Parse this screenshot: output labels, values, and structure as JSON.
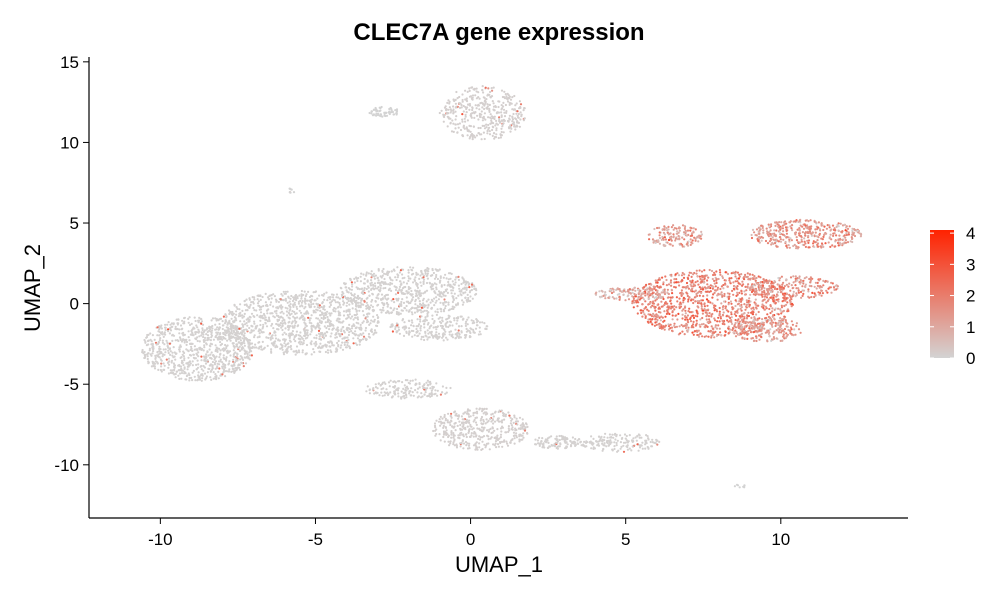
{
  "chart_data": {
    "type": "scatter",
    "title": "CLEC7A gene expression",
    "xlabel": "UMAP_1",
    "ylabel": "UMAP_2",
    "xlim": [
      -12.3,
      14.1
    ],
    "ylim": [
      -13.3,
      15.3
    ],
    "xticks": [
      -10,
      -5,
      0,
      5,
      10
    ],
    "yticks": [
      -10,
      -5,
      0,
      5,
      10,
      15
    ],
    "grid": false,
    "legend": {
      "placement": "right",
      "ticks": [
        0,
        1,
        2,
        3,
        4
      ],
      "low_color": "#d3d3d3",
      "high_color": "#ff2200"
    },
    "clusters": [
      {
        "name": "top-island",
        "cx": 0.4,
        "cy": 11.8,
        "rx": 1.4,
        "ry": 1.7,
        "expression": 0.1,
        "density": 1.0
      },
      {
        "name": "top-left-islet",
        "cx": -2.8,
        "cy": 11.9,
        "rx": 0.5,
        "ry": 0.3,
        "expression": 0.0,
        "density": 0.15
      },
      {
        "name": "tiny-islet",
        "cx": -5.8,
        "cy": 7.0,
        "rx": 0.15,
        "ry": 0.15,
        "expression": 0.0,
        "density": 0.02
      },
      {
        "name": "left-big-core",
        "cx": -8.8,
        "cy": -2.8,
        "rx": 1.8,
        "ry": 2.0,
        "expression": 0.05,
        "density": 2.0
      },
      {
        "name": "left-big-mid",
        "cx": -5.5,
        "cy": -1.2,
        "rx": 2.6,
        "ry": 2.0,
        "expression": 0.05,
        "density": 2.5
      },
      {
        "name": "left-big-upper",
        "cx": -2.0,
        "cy": 0.8,
        "rx": 2.2,
        "ry": 1.5,
        "expression": 0.05,
        "density": 1.6
      },
      {
        "name": "left-big-tail",
        "cx": -1.0,
        "cy": -1.5,
        "rx": 1.6,
        "ry": 0.8,
        "expression": 0.05,
        "density": 0.6
      },
      {
        "name": "bottom-main",
        "cx": 0.3,
        "cy": -7.8,
        "rx": 1.6,
        "ry": 1.3,
        "expression": 0.1,
        "density": 1.0
      },
      {
        "name": "bottom-arm",
        "cx": -2.0,
        "cy": -5.3,
        "rx": 1.4,
        "ry": 0.6,
        "expression": 0.05,
        "density": 0.4
      },
      {
        "name": "bottom-tail",
        "cx": 4.8,
        "cy": -8.6,
        "rx": 1.3,
        "ry": 0.6,
        "expression": 0.05,
        "density": 0.4
      },
      {
        "name": "bottom-tail-end",
        "cx": 2.8,
        "cy": -8.6,
        "rx": 0.8,
        "ry": 0.4,
        "expression": 0.05,
        "density": 0.25
      },
      {
        "name": "bottom-right-islet",
        "cx": 8.7,
        "cy": -11.3,
        "rx": 0.2,
        "ry": 0.12,
        "expression": 0.0,
        "density": 0.02
      },
      {
        "name": "right-core",
        "cx": 7.8,
        "cy": 0.0,
        "rx": 2.6,
        "ry": 2.1,
        "expression": 1.8,
        "density": 2.6
      },
      {
        "name": "right-lower",
        "cx": 9.5,
        "cy": -1.6,
        "rx": 1.2,
        "ry": 0.8,
        "expression": 1.3,
        "density": 0.5
      },
      {
        "name": "right-top-arm",
        "cx": 10.8,
        "cy": 4.3,
        "rx": 1.8,
        "ry": 0.9,
        "expression": 1.4,
        "density": 0.9
      },
      {
        "name": "right-top-left",
        "cx": 6.6,
        "cy": 4.2,
        "rx": 0.9,
        "ry": 0.7,
        "expression": 1.2,
        "density": 0.35
      },
      {
        "name": "right-bridge",
        "cx": 10.4,
        "cy": 1.0,
        "rx": 1.5,
        "ry": 0.7,
        "expression": 1.5,
        "density": 0.5
      },
      {
        "name": "right-left-tail",
        "cx": 5.2,
        "cy": 0.6,
        "rx": 1.2,
        "ry": 0.4,
        "expression": 0.9,
        "density": 0.3
      }
    ]
  }
}
